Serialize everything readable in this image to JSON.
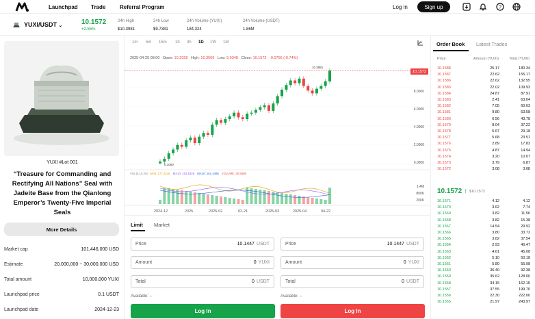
{
  "nav": {
    "links": [
      "Launchpad",
      "Trade",
      "Referral Program"
    ],
    "login": "Log in",
    "signup": "Sign up"
  },
  "ticker": {
    "pair": "YUXI/USDT",
    "price": "10.1572",
    "change": "+2.55%",
    "stats": [
      {
        "label": "24h High",
        "value": "$10.3981"
      },
      {
        "label": "24h Low",
        "value": "$9.7381"
      },
      {
        "label": "24h Volume (YUXI)",
        "value": "184,324"
      },
      {
        "label": "24h Volume (USDT)",
        "value": "1.86M"
      }
    ]
  },
  "nft": {
    "lot": "YUXI #Lot 001",
    "title": "“Treasure for Commanding and Rectifying All Nations” Seal with Jadeite Base from the Qianlong Emperor’s Twenty-Five Imperial Seals",
    "more": "More Details",
    "details": [
      {
        "k": "Market cap",
        "v": "101,446,000 USD"
      },
      {
        "k": "Estimate",
        "v": "20,000,000 ~ 30,000,000 USD"
      },
      {
        "k": "Total amount",
        "v": "10,000,000 YUXI"
      },
      {
        "k": "Launchpad price",
        "v": "0.1 USDT"
      },
      {
        "k": "Launchpad date",
        "v": "2024-12-23"
      }
    ]
  },
  "chart": {
    "timeframes": [
      "1m",
      "5m",
      "15m",
      "1h",
      "4h",
      "1D",
      "1W",
      "1M"
    ],
    "active_tf": "1D",
    "ohlc": {
      "date": "2025-04-25 08:00",
      "open_label": "Open:",
      "open": "10.2328",
      "high_label": "High:",
      "high": "10.3569",
      "low_label": "Low:",
      "low": "9.9348",
      "close_label": "Close:",
      "close": "10.1572",
      "change": "-0.0756 (-0.74%)"
    },
    "last_price_tag": "10.1572",
    "high_mark": "10.3981",
    "low_mark": "0.1000",
    "ma_legend": {
      "vol": "VOL(5,10,20)",
      "ma5": "MA5: 177.321K",
      "ma10": "MA10: 163.532K",
      "ma20": "MA20: 161.448K",
      "volume": "VOLUME: 30.559K"
    },
    "price_ticks": [
      "8.0000",
      "6.0000",
      "4.0000",
      "2.0000",
      "0.0000"
    ],
    "vol_ticks": [
      "1.4M",
      "800K",
      "200K"
    ],
    "x_ticks": [
      "2024-12",
      "2025",
      "2025-02",
      "02-21",
      "2025-03",
      "2025-04",
      "04-22"
    ]
  },
  "chart_data": {
    "type": "candlestick",
    "title": "",
    "xlabel": "",
    "ylabel": "",
    "ylim": [
      0,
      10.4
    ],
    "x_range": [
      "2024-12-23",
      "2025-04-25"
    ],
    "series": [
      {
        "name": "",
        "values": [
          0.3,
          0.6,
          1.2,
          1.6,
          2.1,
          1.9,
          2.6,
          2.9,
          2.3,
          3.0,
          3.4,
          3.2,
          4.3,
          4.8,
          4.5,
          4.9,
          5.2,
          5.6,
          5.1,
          4.9,
          5.5,
          5.6,
          5.9,
          6.2,
          6.4,
          5.8,
          6.6,
          7.4,
          8.1,
          8.6,
          9.1,
          8.8,
          9.3,
          8.5,
          8.0,
          7.7,
          8.2,
          8.5,
          9.0,
          10.16
        ]
      }
    ]
  },
  "order": {
    "tabs": [
      "Limit",
      "Market"
    ],
    "buy": {
      "price_label": "Price",
      "price": "10.1447",
      "price_unit": "USDT",
      "amount_label": "Amount",
      "amount": "0",
      "amount_unit": "YUXI",
      "total_label": "Total",
      "total": "0",
      "total_unit": "USDT",
      "available": "Available: --",
      "button": "Log In"
    },
    "sell": {
      "price_label": "Price",
      "price": "10.1447",
      "price_unit": "USDT",
      "amount_label": "Amount",
      "amount": "0",
      "amount_unit": "YUXI",
      "total_label": "Total",
      "total": "0",
      "total_unit": "USDT",
      "available": "Available: --",
      "button": "Log In"
    }
  },
  "book": {
    "tabs": [
      "Order Book",
      "Latest Trades"
    ],
    "headers": [
      "Price",
      "Amount (YUXI)",
      "Total (YUXI)"
    ],
    "asks": [
      [
        "10.1588",
        "25.17",
        "180.34"
      ],
      [
        "10.1587",
        "22.62",
        "155.17"
      ],
      [
        "10.1586",
        "22.62",
        "132.55"
      ],
      [
        "10.1585",
        "22.02",
        "109.93"
      ],
      [
        "10.1584",
        "24.87",
        "87.91"
      ],
      [
        "10.1583",
        "2.41",
        "63.04"
      ],
      [
        "10.1582",
        "7.05",
        "60.63"
      ],
      [
        "10.1581",
        "9.80",
        "53.58"
      ],
      [
        "10.1580",
        "6.56",
        "43.78"
      ],
      [
        "10.1579",
        "8.04",
        "37.22"
      ],
      [
        "10.1578",
        "5.67",
        "29.18"
      ],
      [
        "10.1577",
        "5.68",
        "23.51"
      ],
      [
        "10.1576",
        "2.89",
        "17.83"
      ],
      [
        "10.1575",
        "4.87",
        "14.94"
      ],
      [
        "10.1574",
        "3.20",
        "10.07"
      ],
      [
        "10.1573",
        "3.79",
        "6.87"
      ],
      [
        "10.1572",
        "3.08",
        "3.08"
      ]
    ],
    "mid": "10.1572",
    "mid_arrow": "↑",
    "mid_sub": "$10.1572",
    "bids": [
      [
        "10.1571",
        "4.12",
        "4.12"
      ],
      [
        "10.1570",
        "3.62",
        "7.74"
      ],
      [
        "10.1569",
        "3.82",
        "11.56"
      ],
      [
        "10.1568",
        "3.82",
        "15.38"
      ],
      [
        "10.1567",
        "14.54",
        "29.92"
      ],
      [
        "10.1566",
        "3.80",
        "33.72"
      ],
      [
        "10.1565",
        "3.82",
        "37.54"
      ],
      [
        "10.1564",
        "2.93",
        "40.47"
      ],
      [
        "10.1563",
        "4.61",
        "45.08"
      ],
      [
        "10.1562",
        "5.10",
        "50.18"
      ],
      [
        "10.1561",
        "5.80",
        "55.98"
      ],
      [
        "10.1560",
        "36.40",
        "92.38"
      ],
      [
        "10.1559",
        "35.62",
        "128.00"
      ],
      [
        "10.1558",
        "34.15",
        "162.15"
      ],
      [
        "10.1557",
        "37.55",
        "199.70"
      ],
      [
        "10.1556",
        "22.30",
        "222.00"
      ],
      [
        "10.1555",
        "21.97",
        "243.97"
      ]
    ]
  }
}
